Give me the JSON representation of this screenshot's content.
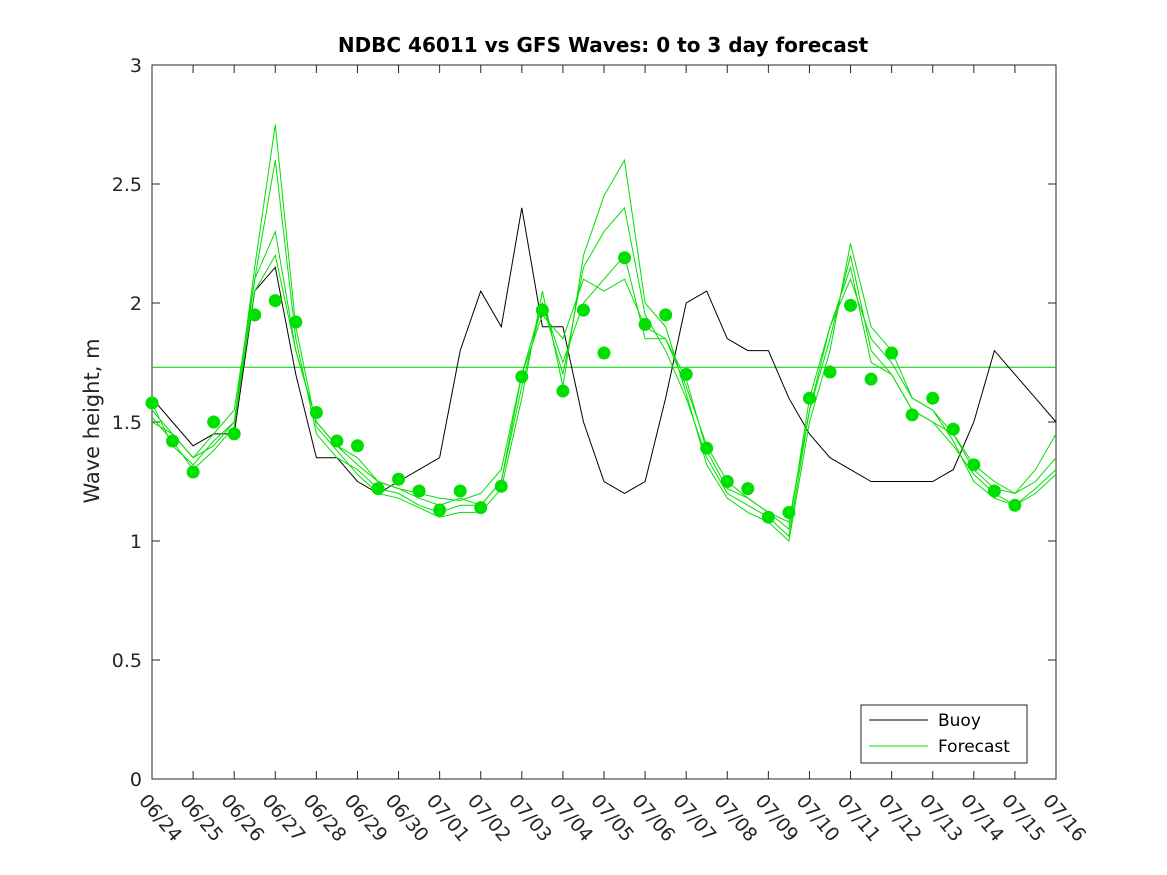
{
  "chart_data": {
    "type": "line",
    "title": "NDBC 46011 vs GFS Waves: 0 to 3 day forecast",
    "ylabel": "Wave height, m",
    "xlabel": "",
    "xlim": [
      0,
      22
    ],
    "ylim": [
      0,
      3
    ],
    "x_tick_labels": [
      "06/24",
      "06/25",
      "06/26",
      "06/27",
      "06/28",
      "06/29",
      "06/30",
      "07/01",
      "07/02",
      "07/03",
      "07/04",
      "07/05",
      "07/06",
      "07/07",
      "07/08",
      "07/09",
      "07/10",
      "07/11",
      "07/12",
      "07/13",
      "07/14",
      "07/15",
      "07/16"
    ],
    "y_ticks": [
      0,
      0.5,
      1,
      1.5,
      2,
      2.5,
      3
    ],
    "y_tick_labels": [
      "0",
      "0.5",
      "1",
      "1.5",
      "2",
      "2.5",
      "3"
    ],
    "grid": false,
    "legend": {
      "position": "bottom-right",
      "entries": [
        "Buoy",
        "Forecast"
      ]
    },
    "colors": {
      "buoy": "#000000",
      "forecast": "#00e000",
      "mean_line": "#00cc00"
    },
    "mean_forecast_height": 1.73,
    "buoy": {
      "x": [
        0,
        0.5,
        1,
        1.5,
        2,
        2.5,
        3,
        3.5,
        4,
        4.5,
        5,
        5.5,
        6,
        6.5,
        7,
        7.5,
        8,
        8.5,
        9,
        9.5,
        10,
        10.5,
        11,
        11.5,
        12,
        12.5,
        13,
        13.5,
        14,
        14.5,
        15,
        15.5,
        16,
        16.5,
        17,
        17.5,
        18,
        18.5,
        19,
        19.5,
        20,
        20.5,
        21,
        21.5,
        22
      ],
      "y": [
        1.6,
        1.5,
        1.4,
        1.45,
        1.45,
        2.05,
        2.15,
        1.7,
        1.35,
        1.35,
        1.25,
        1.2,
        1.25,
        1.3,
        1.35,
        1.8,
        2.05,
        1.9,
        2.4,
        1.9,
        1.9,
        1.5,
        1.25,
        1.2,
        1.25,
        1.6,
        2.0,
        2.05,
        1.85,
        1.8,
        1.8,
        1.6,
        1.45,
        1.35,
        1.3,
        1.25,
        1.25,
        1.25,
        1.25,
        1.3,
        1.5,
        1.8,
        1.7,
        1.6,
        1.5
      ]
    },
    "forecast_dots": {
      "x": [
        0,
        0.5,
        1,
        1.5,
        2,
        2.5,
        3,
        3.5,
        4,
        4.5,
        5,
        5.5,
        6,
        6.5,
        7,
        7.5,
        8,
        8.5,
        9,
        9.5,
        10,
        10.5,
        11,
        11.5,
        12,
        12.5,
        13,
        13.5,
        14,
        14.5,
        15,
        15.5,
        16,
        16.5,
        17,
        17.5,
        18,
        18.5,
        19,
        19.5,
        20,
        20.5,
        21
      ],
      "y": [
        1.58,
        1.42,
        1.29,
        1.5,
        1.45,
        1.95,
        2.01,
        1.92,
        1.54,
        1.42,
        1.4,
        1.22,
        1.26,
        1.21,
        1.13,
        1.21,
        1.14,
        1.23,
        1.69,
        1.97,
        1.63,
        1.97,
        1.79,
        2.19,
        1.91,
        1.95,
        1.7,
        1.39,
        1.25,
        1.22,
        1.1,
        1.12,
        1.6,
        1.71,
        1.99,
        1.68,
        1.79,
        1.53,
        1.6,
        1.47,
        1.32,
        1.21,
        1.15
      ]
    },
    "forecast_series": [
      {
        "x": [
          0,
          0.5,
          1,
          1.5,
          2,
          2.5,
          3,
          3.5,
          4,
          4.5,
          5,
          5.5,
          6,
          6.5,
          7,
          7.5,
          8,
          8.5,
          9,
          9.5,
          10,
          10.5,
          11,
          11.5,
          12,
          12.5,
          13,
          13.5,
          14,
          14.5,
          15,
          15.5,
          16,
          16.5,
          17,
          17.5,
          18,
          18.5,
          19,
          19.5,
          20,
          20.5,
          21,
          21.5,
          22
        ],
        "y": [
          1.55,
          1.45,
          1.35,
          1.4,
          1.5,
          2.05,
          2.2,
          1.8,
          1.5,
          1.4,
          1.32,
          1.25,
          1.22,
          1.2,
          1.18,
          1.17,
          1.2,
          1.3,
          1.7,
          1.95,
          1.85,
          2.1,
          2.05,
          2.1,
          1.9,
          1.85,
          1.65,
          1.4,
          1.25,
          1.18,
          1.12,
          1.05,
          1.6,
          1.9,
          2.1,
          1.85,
          1.75,
          1.6,
          1.55,
          1.45,
          1.3,
          1.22,
          1.2,
          1.25,
          1.35
        ]
      },
      {
        "x": [
          0,
          0.5,
          1,
          1.5,
          2,
          2.5,
          3,
          3.5,
          4,
          4.5,
          5,
          5.5,
          6,
          6.5,
          7,
          7.5,
          8,
          8.5,
          9,
          9.5,
          10,
          10.5,
          11,
          11.5,
          12,
          12.5,
          13,
          13.5,
          14,
          14.5,
          15,
          15.5,
          16,
          16.5,
          17,
          17.5,
          18,
          18.5,
          19,
          19.5,
          20,
          20.5,
          21,
          21.5,
          22
        ],
        "y": [
          1.52,
          1.42,
          1.3,
          1.38,
          1.48,
          2.1,
          2.6,
          1.85,
          1.45,
          1.35,
          1.3,
          1.22,
          1.2,
          1.15,
          1.12,
          1.15,
          1.15,
          1.25,
          1.65,
          2.0,
          1.7,
          2.15,
          2.3,
          2.4,
          1.95,
          1.8,
          1.6,
          1.35,
          1.2,
          1.15,
          1.1,
          1.02,
          1.55,
          1.85,
          2.2,
          1.8,
          1.7,
          1.55,
          1.5,
          1.4,
          1.28,
          1.2,
          1.15,
          1.22,
          1.3
        ]
      },
      {
        "x": [
          0,
          0.5,
          1,
          1.5,
          2,
          2.5,
          3,
          3.5,
          4,
          4.5,
          5,
          5.5,
          6,
          6.5,
          7,
          7.5,
          8,
          8.5,
          9,
          9.5,
          10,
          10.5,
          11,
          11.5,
          12,
          12.5,
          13,
          13.5,
          14,
          14.5,
          15,
          15.5,
          16,
          16.5,
          17,
          17.5,
          18,
          18.5,
          19,
          19.5,
          20,
          20.5,
          21,
          21.5,
          22
        ],
        "y": [
          1.58,
          1.4,
          1.32,
          1.42,
          1.5,
          2.15,
          2.75,
          1.9,
          1.48,
          1.38,
          1.28,
          1.2,
          1.18,
          1.14,
          1.1,
          1.12,
          1.12,
          1.22,
          1.6,
          2.05,
          1.65,
          2.2,
          2.45,
          2.6,
          2.0,
          1.9,
          1.62,
          1.32,
          1.18,
          1.12,
          1.08,
          1.0,
          1.5,
          1.8,
          2.25,
          1.9,
          1.8,
          1.6,
          1.55,
          1.42,
          1.25,
          1.18,
          1.15,
          1.2,
          1.28
        ]
      },
      {
        "x": [
          0,
          0.5,
          1,
          1.5,
          2,
          2.5,
          3,
          3.5,
          4,
          4.5,
          5,
          5.5,
          6,
          6.5,
          7,
          7.5,
          8,
          8.5,
          9,
          9.5,
          10,
          10.5,
          11,
          11.5,
          12,
          12.5,
          13,
          13.5,
          14,
          14.5,
          15,
          15.5,
          16,
          16.5,
          17,
          17.5,
          18,
          18.5,
          19,
          19.5,
          20,
          20.5,
          21,
          21.5,
          22
        ],
        "y": [
          1.5,
          1.45,
          1.35,
          1.45,
          1.55,
          2.1,
          2.3,
          1.8,
          1.5,
          1.4,
          1.35,
          1.25,
          1.22,
          1.18,
          1.15,
          1.18,
          1.15,
          1.25,
          1.7,
          2.0,
          1.75,
          2.0,
          2.1,
          2.2,
          1.85,
          1.85,
          1.68,
          1.38,
          1.22,
          1.18,
          1.12,
          1.08,
          1.55,
          1.9,
          2.15,
          1.75,
          1.7,
          1.55,
          1.5,
          1.45,
          1.32,
          1.25,
          1.2,
          1.3,
          1.45
        ]
      }
    ]
  }
}
